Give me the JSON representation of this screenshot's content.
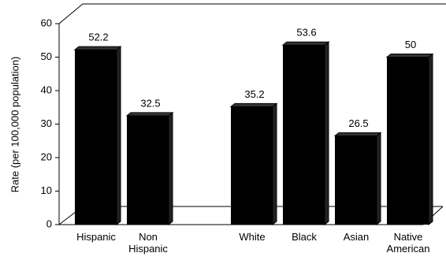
{
  "chart_data": {
    "type": "bar",
    "y_label": "Rate (per 100,000 population)",
    "categories": [
      "Hispanic",
      "Non Hispanic",
      null,
      "White",
      "Black",
      "Asian",
      "Native American"
    ],
    "values": [
      52.2,
      32.5,
      null,
      35.2,
      53.6,
      26.5,
      50
    ],
    "color": "#000000",
    "ylim": [
      0,
      60
    ],
    "yticks": [
      0,
      10,
      20,
      30,
      40,
      50,
      60
    ]
  }
}
